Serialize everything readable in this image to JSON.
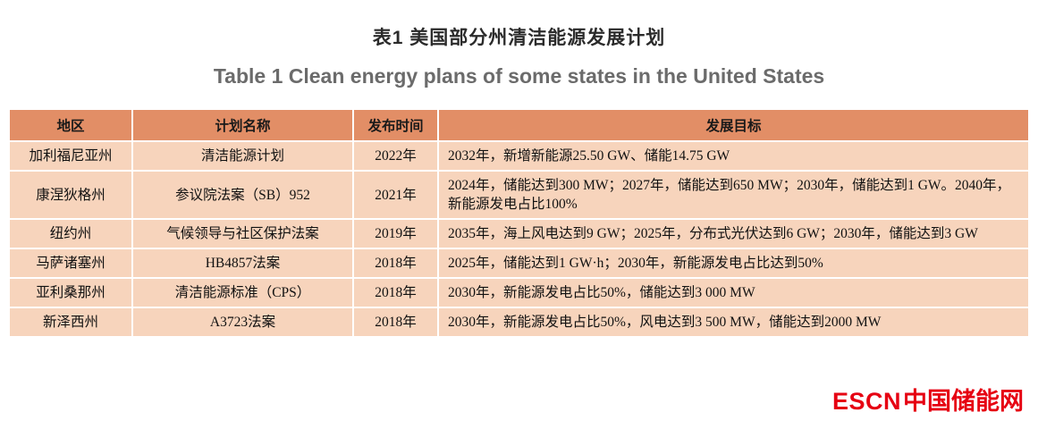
{
  "title_zh": "表1  美国部分州清洁能源发展计划",
  "title_en": "Table 1  Clean energy plans of some states in the United States",
  "table": {
    "headers": [
      "地区",
      "计划名称",
      "发布时间",
      "发展目标"
    ],
    "rows": [
      [
        "加利福尼亚州",
        "清洁能源计划",
        "2022年",
        "2032年，新增新能源25.50 GW、储能14.75 GW"
      ],
      [
        "康涅狄格州",
        "参议院法案（SB）952",
        "2021年",
        "2024年，储能达到300 MW；2027年，储能达到650 MW；2030年，储能达到1 GW。2040年，新能源发电占比100%"
      ],
      [
        "纽约州",
        "气候领导与社区保护法案",
        "2019年",
        "2035年，海上风电达到9 GW；2025年，分布式光伏达到6 GW；2030年，储能达到3 GW"
      ],
      [
        "马萨诸塞州",
        "HB4857法案",
        "2018年",
        "2025年，储能达到1 GW·h；2030年，新能源发电占比达到50%"
      ],
      [
        "亚利桑那州",
        "清洁能源标准（CPS）",
        "2018年",
        "2030年，新能源发电占比50%，储能达到3 000 MW"
      ],
      [
        "新泽西州",
        "A3723法案",
        "2018年",
        "2030年，新能源发电占比50%，风电达到3 500 MW，储能达到2000 MW"
      ]
    ]
  },
  "footer": {
    "logo_en": "ESCN",
    "logo_zh": "中国储能网"
  },
  "colors": {
    "header_bg": "#e28e66",
    "cell_bg": "#f7d4bc",
    "logo_red": "#e60012"
  }
}
